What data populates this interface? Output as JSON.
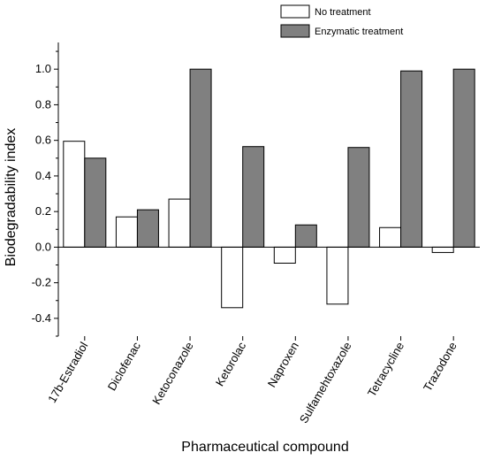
{
  "chart_data": {
    "type": "bar",
    "title": "",
    "xlabel": "Pharmaceutical compound",
    "ylabel": "Biodegradability index",
    "ylim": [
      -0.5,
      1.15
    ],
    "yticks": [
      "-0.4",
      "-0.2",
      "0.0",
      "0.2",
      "0.4",
      "0.6",
      "0.8",
      "1.0"
    ],
    "ytick_values": [
      -0.4,
      -0.2,
      0.0,
      0.2,
      0.4,
      0.6,
      0.8,
      1.0
    ],
    "grid": false,
    "legend_position": "top-right",
    "categories": [
      "17b-Estradiol",
      "Diclofenac",
      "Ketoconazole",
      "Ketorolac",
      "Naproxen",
      "Sulfamehtoxazole",
      "Tetracycline",
      "Trazodone"
    ],
    "series": [
      {
        "name": "No treatment",
        "color": "#ffffff",
        "values": [
          0.595,
          0.17,
          0.27,
          -0.34,
          -0.09,
          -0.32,
          0.11,
          -0.03
        ]
      },
      {
        "name": "Enzymatic treatment",
        "color": "#808080",
        "values": [
          0.5,
          0.21,
          1.0,
          0.565,
          0.125,
          0.56,
          0.99,
          1.0
        ]
      }
    ]
  }
}
